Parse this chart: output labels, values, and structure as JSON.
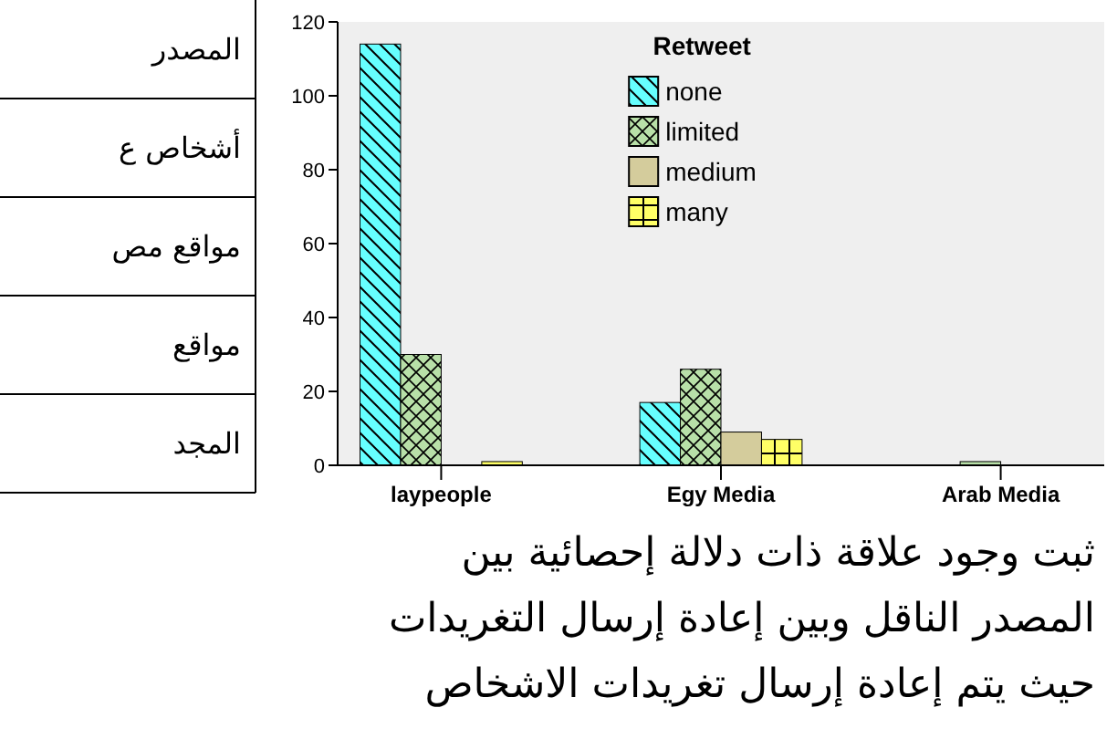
{
  "chart_data": {
    "type": "bar",
    "legend_title": "Retweet",
    "categories": [
      "laypeople",
      "Egy Media",
      "Arab Media"
    ],
    "series": [
      {
        "name": "none",
        "color": "#66ffff",
        "values": [
          114,
          17,
          0
        ]
      },
      {
        "name": "limited",
        "color": "#b8e0a8",
        "values": [
          30,
          26,
          1
        ]
      },
      {
        "name": "medium",
        "color": "#d4cc9c",
        "values": [
          0,
          9,
          0
        ]
      },
      {
        "name": "many",
        "color": "#ffff66",
        "values": [
          1,
          7,
          0
        ]
      }
    ],
    "ylim": [
      0,
      120
    ],
    "yticks": [
      0,
      20,
      40,
      60,
      80,
      100,
      120
    ],
    "legend": "top",
    "grid": false,
    "annotations": [
      "المصدر",
      "أشخاص ع",
      "مواقع مص",
      "مواقع",
      "المجد",
      "ثبت وجود علاقة ذات دلالة إحصائية بين",
      "المصدر الناقل وبين إعادة إرسال التغريدات",
      "حيث يتم إعادة إرسال تغريدات الاشخاص"
    ]
  }
}
